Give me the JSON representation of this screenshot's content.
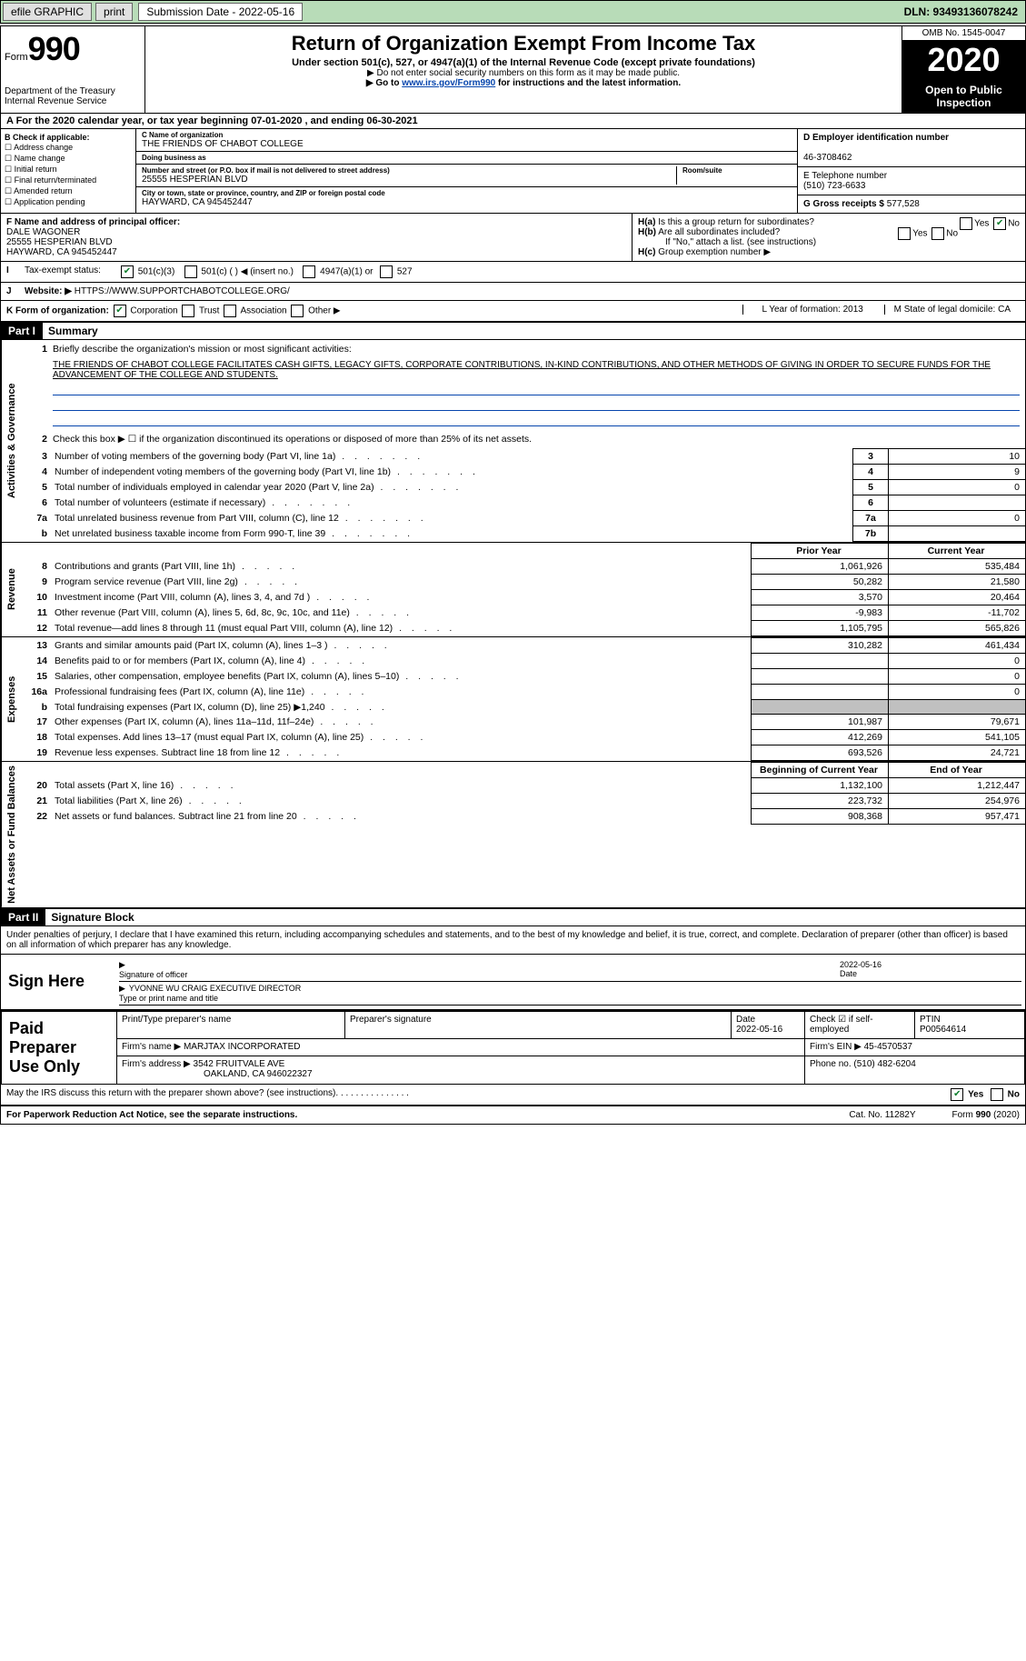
{
  "topbar": {
    "efile": "efile GRAPHIC",
    "print": "print",
    "sub_label": "Submission Date - 2022-05-16",
    "dln": "DLN: 93493136078242"
  },
  "header": {
    "form": "Form",
    "form_num": "990",
    "dept": "Department of the Treasury",
    "irs": "Internal Revenue Service",
    "title": "Return of Organization Exempt From Income Tax",
    "sub": "Under section 501(c), 527, or 4947(a)(1) of the Internal Revenue Code (except private foundations)",
    "note1": "▶ Do not enter social security numbers on this form as it may be made public.",
    "note2_pre": "▶ Go to ",
    "note2_link": "www.irs.gov/Form990",
    "note2_post": " for instructions and the latest information.",
    "omb": "OMB No. 1545-0047",
    "year": "2020",
    "open": "Open to Public Inspection"
  },
  "a_row": "A For the 2020 calendar year, or tax year beginning 07-01-2020   , and ending 06-30-2021",
  "b": {
    "label": "B Check if applicable:",
    "items": [
      "Address change",
      "Name change",
      "Initial return",
      "Final return/terminated",
      "Amended return",
      "Application pending"
    ]
  },
  "c": {
    "name_label": "C Name of organization",
    "name": "THE FRIENDS OF CHABOT COLLEGE",
    "dba_label": "Doing business as",
    "dba": "",
    "addr_label": "Number and street (or P.O. box if mail is not delivered to street address)",
    "room_label": "Room/suite",
    "addr": "25555 HESPERIAN BLVD",
    "city_label": "City or town, state or province, country, and ZIP or foreign postal code",
    "city": "HAYWARD, CA  945452447"
  },
  "d": {
    "label": "D Employer identification number",
    "val": "46-3708462"
  },
  "e": {
    "label": "E Telephone number",
    "val": "(510) 723-6633"
  },
  "g": {
    "label": "G Gross receipts $",
    "val": "577,528"
  },
  "f": {
    "label": "F Name and address of principal officer:",
    "name": "DALE WAGONER",
    "addr1": "25555 HESPERIAN BLVD",
    "addr2": "HAYWARD, CA  945452447"
  },
  "h": {
    "a": "Is this a group return for subordinates?",
    "b": "Are all subordinates included?",
    "b_note": "If \"No,\" attach a list. (see instructions)",
    "c": "Group exemption number ▶",
    "yes": "Yes",
    "no": "No"
  },
  "i": {
    "label": "Tax-exempt status:",
    "opts": [
      "501(c)(3)",
      "501(c) (  ) ◀ (insert no.)",
      "4947(a)(1) or",
      "527"
    ]
  },
  "j": {
    "label": "Website: ▶",
    "val": "HTTPS://WWW.SUPPORTCHABOTCOLLEGE.ORG/"
  },
  "k": {
    "label": "K Form of organization:",
    "opts": [
      "Corporation",
      "Trust",
      "Association",
      "Other ▶"
    ],
    "l": "L Year of formation: 2013",
    "m": "M State of legal domicile: CA"
  },
  "part1": {
    "hdr": "Part I",
    "title": "Summary",
    "side1": "Activities & Governance",
    "side2": "Revenue",
    "side3": "Expenses",
    "side4": "Net Assets or Fund Balances",
    "l1": "Briefly describe the organization's mission or most significant activities:",
    "mission": "THE FRIENDS OF CHABOT COLLEGE FACILITATES CASH GIFTS, LEGACY GIFTS, CORPORATE CONTRIBUTIONS, IN-KIND CONTRIBUTIONS, AND OTHER METHODS OF GIVING IN ORDER TO SECURE FUNDS FOR THE ADVANCEMENT OF THE COLLEGE AND STUDENTS.",
    "l2": "Check this box ▶ ☐  if the organization discontinued its operations or disposed of more than 25% of its net assets.",
    "rows_gov": [
      {
        "n": "3",
        "d": "Number of voting members of the governing body (Part VI, line 1a)",
        "b": "3",
        "v": "10"
      },
      {
        "n": "4",
        "d": "Number of independent voting members of the governing body (Part VI, line 1b)",
        "b": "4",
        "v": "9"
      },
      {
        "n": "5",
        "d": "Total number of individuals employed in calendar year 2020 (Part V, line 2a)",
        "b": "5",
        "v": "0"
      },
      {
        "n": "6",
        "d": "Total number of volunteers (estimate if necessary)",
        "b": "6",
        "v": ""
      },
      {
        "n": "7a",
        "d": "Total unrelated business revenue from Part VIII, column (C), line 12",
        "b": "7a",
        "v": "0"
      },
      {
        "n": "b",
        "d": "Net unrelated business taxable income from Form 990-T, line 39",
        "b": "7b",
        "v": ""
      }
    ],
    "col_py": "Prior Year",
    "col_cy": "Current Year",
    "rows_rev": [
      {
        "n": "8",
        "d": "Contributions and grants (Part VIII, line 1h)",
        "py": "1,061,926",
        "cy": "535,484"
      },
      {
        "n": "9",
        "d": "Program service revenue (Part VIII, line 2g)",
        "py": "50,282",
        "cy": "21,580"
      },
      {
        "n": "10",
        "d": "Investment income (Part VIII, column (A), lines 3, 4, and 7d )",
        "py": "3,570",
        "cy": "20,464"
      },
      {
        "n": "11",
        "d": "Other revenue (Part VIII, column (A), lines 5, 6d, 8c, 9c, 10c, and 11e)",
        "py": "-9,983",
        "cy": "-11,702"
      },
      {
        "n": "12",
        "d": "Total revenue—add lines 8 through 11 (must equal Part VIII, column (A), line 12)",
        "py": "1,105,795",
        "cy": "565,826"
      }
    ],
    "rows_exp": [
      {
        "n": "13",
        "d": "Grants and similar amounts paid (Part IX, column (A), lines 1–3 )",
        "py": "310,282",
        "cy": "461,434"
      },
      {
        "n": "14",
        "d": "Benefits paid to or for members (Part IX, column (A), line 4)",
        "py": "",
        "cy": "0"
      },
      {
        "n": "15",
        "d": "Salaries, other compensation, employee benefits (Part IX, column (A), lines 5–10)",
        "py": "",
        "cy": "0"
      },
      {
        "n": "16a",
        "d": "Professional fundraising fees (Part IX, column (A), line 11e)",
        "py": "",
        "cy": "0"
      },
      {
        "n": "b",
        "d": "Total fundraising expenses (Part IX, column (D), line 25) ▶1,240",
        "py": "grey",
        "cy": "grey"
      },
      {
        "n": "17",
        "d": "Other expenses (Part IX, column (A), lines 11a–11d, 11f–24e)",
        "py": "101,987",
        "cy": "79,671"
      },
      {
        "n": "18",
        "d": "Total expenses. Add lines 13–17 (must equal Part IX, column (A), line 25)",
        "py": "412,269",
        "cy": "541,105"
      },
      {
        "n": "19",
        "d": "Revenue less expenses. Subtract line 18 from line 12",
        "py": "693,526",
        "cy": "24,721"
      }
    ],
    "col_boy": "Beginning of Current Year",
    "col_eoy": "End of Year",
    "rows_net": [
      {
        "n": "20",
        "d": "Total assets (Part X, line 16)",
        "py": "1,132,100",
        "cy": "1,212,447"
      },
      {
        "n": "21",
        "d": "Total liabilities (Part X, line 26)",
        "py": "223,732",
        "cy": "254,976"
      },
      {
        "n": "22",
        "d": "Net assets or fund balances. Subtract line 21 from line 20",
        "py": "908,368",
        "cy": "957,471"
      }
    ]
  },
  "part2": {
    "hdr": "Part II",
    "title": "Signature Block",
    "decl": "Under penalties of perjury, I declare that I have examined this return, including accompanying schedules and statements, and to the best of my knowledge and belief, it is true, correct, and complete. Declaration of preparer (other than officer) is based on all information of which preparer has any knowledge.",
    "sign_here": "Sign Here",
    "sig_officer": "Signature of officer",
    "sig_date": "2022-05-16",
    "date_lbl": "Date",
    "name": "YVONNE WU CRAIG  EXECUTIVE DIRECTOR",
    "name_lbl": "Type or print name and title",
    "paid": "Paid Preparer Use Only",
    "p_name_lbl": "Print/Type preparer's name",
    "p_sig_lbl": "Preparer's signature",
    "p_date_lbl": "Date",
    "p_date": "2022-05-16",
    "p_check": "Check ☑ if self-employed",
    "ptin_lbl": "PTIN",
    "ptin": "P00564614",
    "firm_name_lbl": "Firm's name   ▶",
    "firm_name": "MARJTAX INCORPORATED",
    "firm_ein_lbl": "Firm's EIN ▶",
    "firm_ein": "45-4570537",
    "firm_addr_lbl": "Firm's address ▶",
    "firm_addr1": "3542 FRUITVALE AVE",
    "firm_addr2": "OAKLAND, CA  946022327",
    "phone_lbl": "Phone no.",
    "phone": "(510) 482-6204",
    "discuss": "May the IRS discuss this return with the preparer shown above? (see instructions)"
  },
  "footer": {
    "left": "For Paperwork Reduction Act Notice, see the separate instructions.",
    "mid": "Cat. No. 11282Y",
    "right": "Form 990 (2020)"
  }
}
